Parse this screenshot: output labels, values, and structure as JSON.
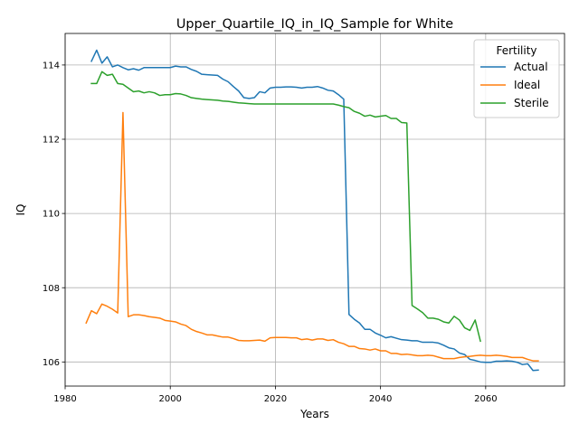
{
  "chart_data": {
    "type": "line",
    "title": "Upper_Quartile_IQ_in_IQ_Sample for White",
    "xlabel": "Years",
    "ylabel": "IQ",
    "xlim": [
      1980,
      2075
    ],
    "ylim": [
      105.35,
      114.85
    ],
    "xticks": [
      1980,
      2000,
      2020,
      2040,
      2060
    ],
    "yticks": [
      106,
      108,
      110,
      112,
      114
    ],
    "grid": true,
    "legend": {
      "title": "Fertility",
      "position": "top-right"
    },
    "series": [
      {
        "name": "Actual",
        "color": "#1f77b4",
        "x": [
          1985,
          1986,
          1987,
          1988,
          1989,
          1990,
          1991,
          1992,
          1993,
          1994,
          1995,
          1996,
          1997,
          1998,
          1999,
          2000,
          2001,
          2002,
          2003,
          2004,
          2005,
          2006,
          2007,
          2008,
          2009,
          2010,
          2011,
          2012,
          2013,
          2014,
          2015,
          2016,
          2017,
          2018,
          2019,
          2020,
          2021,
          2022,
          2023,
          2024,
          2025,
          2026,
          2027,
          2028,
          2029,
          2030,
          2031,
          2032,
          2033,
          2034,
          2035,
          2036,
          2037,
          2038,
          2039,
          2040,
          2041,
          2042,
          2043,
          2044,
          2045,
          2046,
          2047,
          2048,
          2049,
          2050,
          2051,
          2052,
          2053,
          2054,
          2055,
          2056,
          2057,
          2058,
          2059,
          2060,
          2061,
          2062,
          2063,
          2064,
          2065,
          2066,
          2067,
          2068,
          2069,
          2070
        ],
        "values": [
          114.1,
          114.4,
          114.05,
          114.22,
          113.95,
          114.0,
          113.93,
          113.87,
          113.9,
          113.86,
          113.93,
          113.93,
          113.93,
          113.93,
          113.93,
          113.93,
          113.97,
          113.95,
          113.95,
          113.88,
          113.83,
          113.75,
          113.74,
          113.73,
          113.72,
          113.62,
          113.55,
          113.42,
          113.3,
          113.12,
          113.1,
          113.12,
          113.28,
          113.25,
          113.38,
          113.4,
          113.4,
          113.41,
          113.41,
          113.4,
          113.38,
          113.4,
          113.4,
          113.42,
          113.38,
          113.32,
          113.3,
          113.2,
          113.08,
          107.28,
          107.15,
          107.05,
          106.88,
          106.88,
          106.78,
          106.72,
          106.65,
          106.68,
          106.64,
          106.6,
          106.59,
          106.57,
          106.57,
          106.53,
          106.53,
          106.53,
          106.51,
          106.45,
          106.38,
          106.35,
          106.24,
          106.2,
          106.07,
          106.04,
          106.0,
          105.99,
          105.99,
          106.02,
          106.02,
          106.03,
          106.02,
          105.99,
          105.93,
          105.95,
          105.77,
          105.78
        ]
      },
      {
        "name": "Ideal",
        "color": "#ff7f0e",
        "x": [
          1984,
          1985,
          1986,
          1987,
          1988,
          1989,
          1990,
          1991,
          1992,
          1993,
          1994,
          1995,
          1996,
          1997,
          1998,
          1999,
          2000,
          2001,
          2002,
          2003,
          2004,
          2005,
          2006,
          2007,
          2008,
          2009,
          2010,
          2011,
          2012,
          2013,
          2014,
          2015,
          2016,
          2017,
          2018,
          2019,
          2020,
          2021,
          2022,
          2023,
          2024,
          2025,
          2026,
          2027,
          2028,
          2029,
          2030,
          2031,
          2032,
          2033,
          2034,
          2035,
          2036,
          2037,
          2038,
          2039,
          2040,
          2041,
          2042,
          2043,
          2044,
          2045,
          2046,
          2047,
          2048,
          2049,
          2050,
          2051,
          2052,
          2053,
          2054,
          2055,
          2056,
          2057,
          2058,
          2059,
          2060,
          2061,
          2062,
          2063,
          2064,
          2065,
          2066,
          2067,
          2068,
          2069,
          2070
        ],
        "values": [
          107.05,
          107.38,
          107.3,
          107.56,
          107.5,
          107.42,
          107.32,
          112.72,
          107.22,
          107.27,
          107.27,
          107.25,
          107.22,
          107.2,
          107.18,
          107.12,
          107.1,
          107.08,
          107.02,
          106.98,
          106.88,
          106.82,
          106.78,
          106.73,
          106.73,
          106.7,
          106.67,
          106.67,
          106.63,
          106.58,
          106.57,
          106.57,
          106.58,
          106.59,
          106.56,
          106.65,
          106.66,
          106.66,
          106.66,
          106.65,
          106.65,
          106.6,
          106.62,
          106.59,
          106.62,
          106.62,
          106.58,
          106.6,
          106.53,
          106.49,
          106.42,
          106.42,
          106.36,
          106.35,
          106.32,
          106.35,
          106.3,
          106.3,
          106.23,
          106.23,
          106.2,
          106.21,
          106.19,
          106.17,
          106.17,
          106.18,
          106.17,
          106.13,
          106.09,
          106.09,
          106.09,
          106.12,
          106.14,
          106.15,
          106.17,
          106.18,
          106.17,
          106.17,
          106.18,
          106.17,
          106.15,
          106.12,
          106.12,
          106.12,
          106.07,
          106.03,
          106.03
        ]
      },
      {
        "name": "Sterile",
        "color": "#2ca02c",
        "x": [
          1985,
          1986,
          1987,
          1988,
          1989,
          1990,
          1991,
          1992,
          1993,
          1994,
          1995,
          1996,
          1997,
          1998,
          1999,
          2000,
          2001,
          2002,
          2003,
          2004,
          2005,
          2006,
          2007,
          2008,
          2009,
          2010,
          2011,
          2012,
          2013,
          2014,
          2015,
          2016,
          2017,
          2018,
          2019,
          2020,
          2021,
          2022,
          2023,
          2024,
          2025,
          2026,
          2027,
          2028,
          2029,
          2030,
          2031,
          2032,
          2033,
          2034,
          2035,
          2036,
          2037,
          2038,
          2039,
          2040,
          2041,
          2042,
          2043,
          2044,
          2045,
          2046,
          2047,
          2048,
          2049,
          2050,
          2051,
          2052,
          2053,
          2054,
          2055,
          2056,
          2057,
          2058,
          2059
        ],
        "values": [
          113.5,
          113.5,
          113.82,
          113.72,
          113.75,
          113.5,
          113.48,
          113.38,
          113.28,
          113.3,
          113.25,
          113.28,
          113.25,
          113.18,
          113.2,
          113.2,
          113.23,
          113.22,
          113.18,
          113.12,
          113.1,
          113.08,
          113.07,
          113.06,
          113.05,
          113.03,
          113.02,
          113.0,
          112.98,
          112.97,
          112.96,
          112.95,
          112.95,
          112.95,
          112.95,
          112.95,
          112.95,
          112.95,
          112.95,
          112.95,
          112.95,
          112.95,
          112.95,
          112.95,
          112.95,
          112.95,
          112.95,
          112.92,
          112.88,
          112.85,
          112.75,
          112.7,
          112.62,
          112.65,
          112.6,
          112.62,
          112.64,
          112.56,
          112.56,
          112.45,
          112.44,
          107.52,
          107.43,
          107.33,
          107.18,
          107.18,
          107.15,
          107.08,
          107.05,
          107.23,
          107.13,
          106.92,
          106.85,
          107.13,
          106.56
        ]
      }
    ]
  }
}
